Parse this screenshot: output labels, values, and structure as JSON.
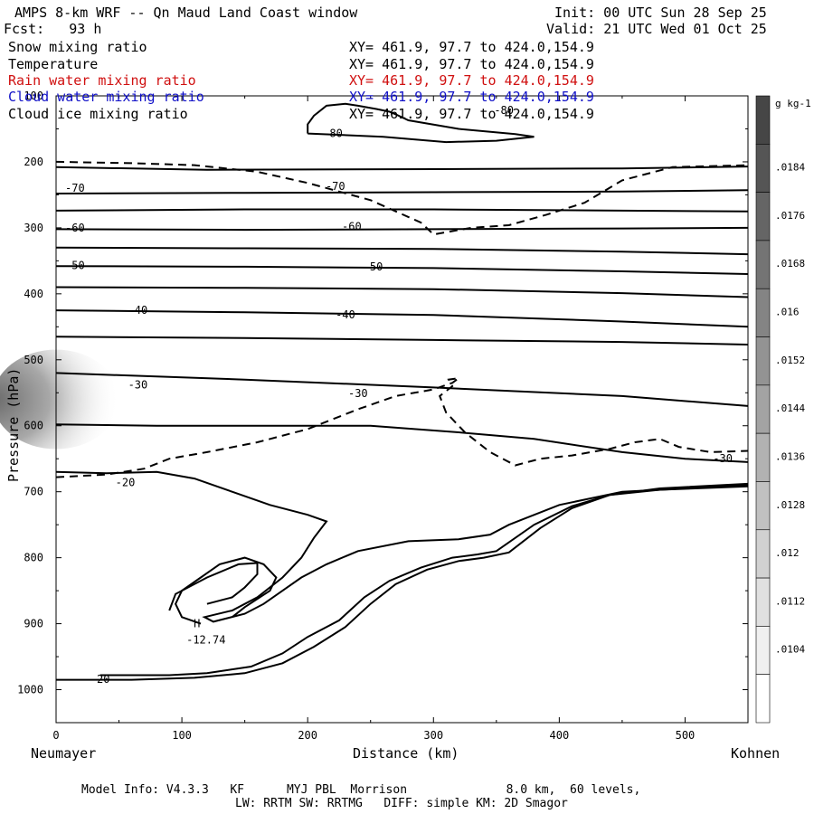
{
  "header": {
    "title": "AMPS 8-km WRF -- Qn Maud Land Coast window",
    "init": "Init: 00 UTC Sun 28 Sep 25",
    "fcst": "Fcst:   93 h",
    "valid": "Valid: 21 UTC Wed 01 Oct 25"
  },
  "fields": [
    {
      "name": "Snow mixing ratio",
      "xy": "XY= 461.9, 97.7 to 424.0,154.9",
      "color": "#000000"
    },
    {
      "name": "Temperature",
      "xy": "XY= 461.9, 97.7 to 424.0,154.9",
      "color": "#000000"
    },
    {
      "name": "Rain water mixing ratio",
      "xy": "XY= 461.9, 97.7 to 424.0,154.9",
      "color": "#d01010"
    },
    {
      "name": "Cloud water mixing ratio",
      "xy": "XY= 461.9, 97.7 to 424.0,154.9",
      "color": "#1010c8"
    },
    {
      "name": "Cloud ice mixing ratio",
      "xy": "XY= 461.9, 97.7 to 424.0,154.9",
      "color": "#000000"
    }
  ],
  "footer": {
    "line1": "Model Info: V4.3.3   KF      MYJ PBL  Morrison              8.0 km,  60 levels,",
    "line2": "LW: RRTM SW: RRTMG   DIFF: simple KM: 2D Smagor"
  },
  "chart_data": {
    "type": "contour",
    "xlabel": "Distance (km)",
    "ylabel": "Pressure (hPa)",
    "x_left_label": "Neumayer",
    "x_right_label": "Kohnen",
    "xlim": [
      0,
      550
    ],
    "ylim": [
      1050,
      100
    ],
    "x_ticks": [
      0,
      100,
      200,
      300,
      400,
      500
    ],
    "y_ticks": [
      100,
      200,
      300,
      400,
      500,
      600,
      700,
      800,
      900,
      1000
    ],
    "colorbar": {
      "unit": "g kg-1",
      "labels": [
        ".0184",
        ".0176",
        ".0168",
        ".016",
        ".0152",
        ".0144",
        ".0136",
        ".0128",
        ".012",
        ".0112",
        ".0104"
      ]
    },
    "isotherm_labels": [
      {
        "text": "-80",
        "x": 220,
        "p": 157
      },
      {
        "text": "-80",
        "x": 356,
        "p": 122
      },
      {
        "text": "-70",
        "x": 15,
        "p": 240
      },
      {
        "text": "-70",
        "x": 222,
        "p": 237
      },
      {
        "text": "-60",
        "x": 15,
        "p": 300
      },
      {
        "text": "-60",
        "x": 235,
        "p": 298
      },
      {
        "text": "-50",
        "x": 15,
        "p": 357
      },
      {
        "text": "-50",
        "x": 252,
        "p": 359
      },
      {
        "text": "-40",
        "x": 65,
        "p": 425
      },
      {
        "text": "-40",
        "x": 230,
        "p": 432
      },
      {
        "text": "-30",
        "x": 65,
        "p": 538
      },
      {
        "text": "-30",
        "x": 240,
        "p": 551
      },
      {
        "text": "-30",
        "x": 530,
        "p": 650
      },
      {
        "text": "-20",
        "x": 55,
        "p": 686
      },
      {
        "text": "-20",
        "x": 35,
        "p": 984
      }
    ],
    "extremum": {
      "marker": "H",
      "value": "-12.74",
      "x": 112,
      "p": 900
    }
  }
}
